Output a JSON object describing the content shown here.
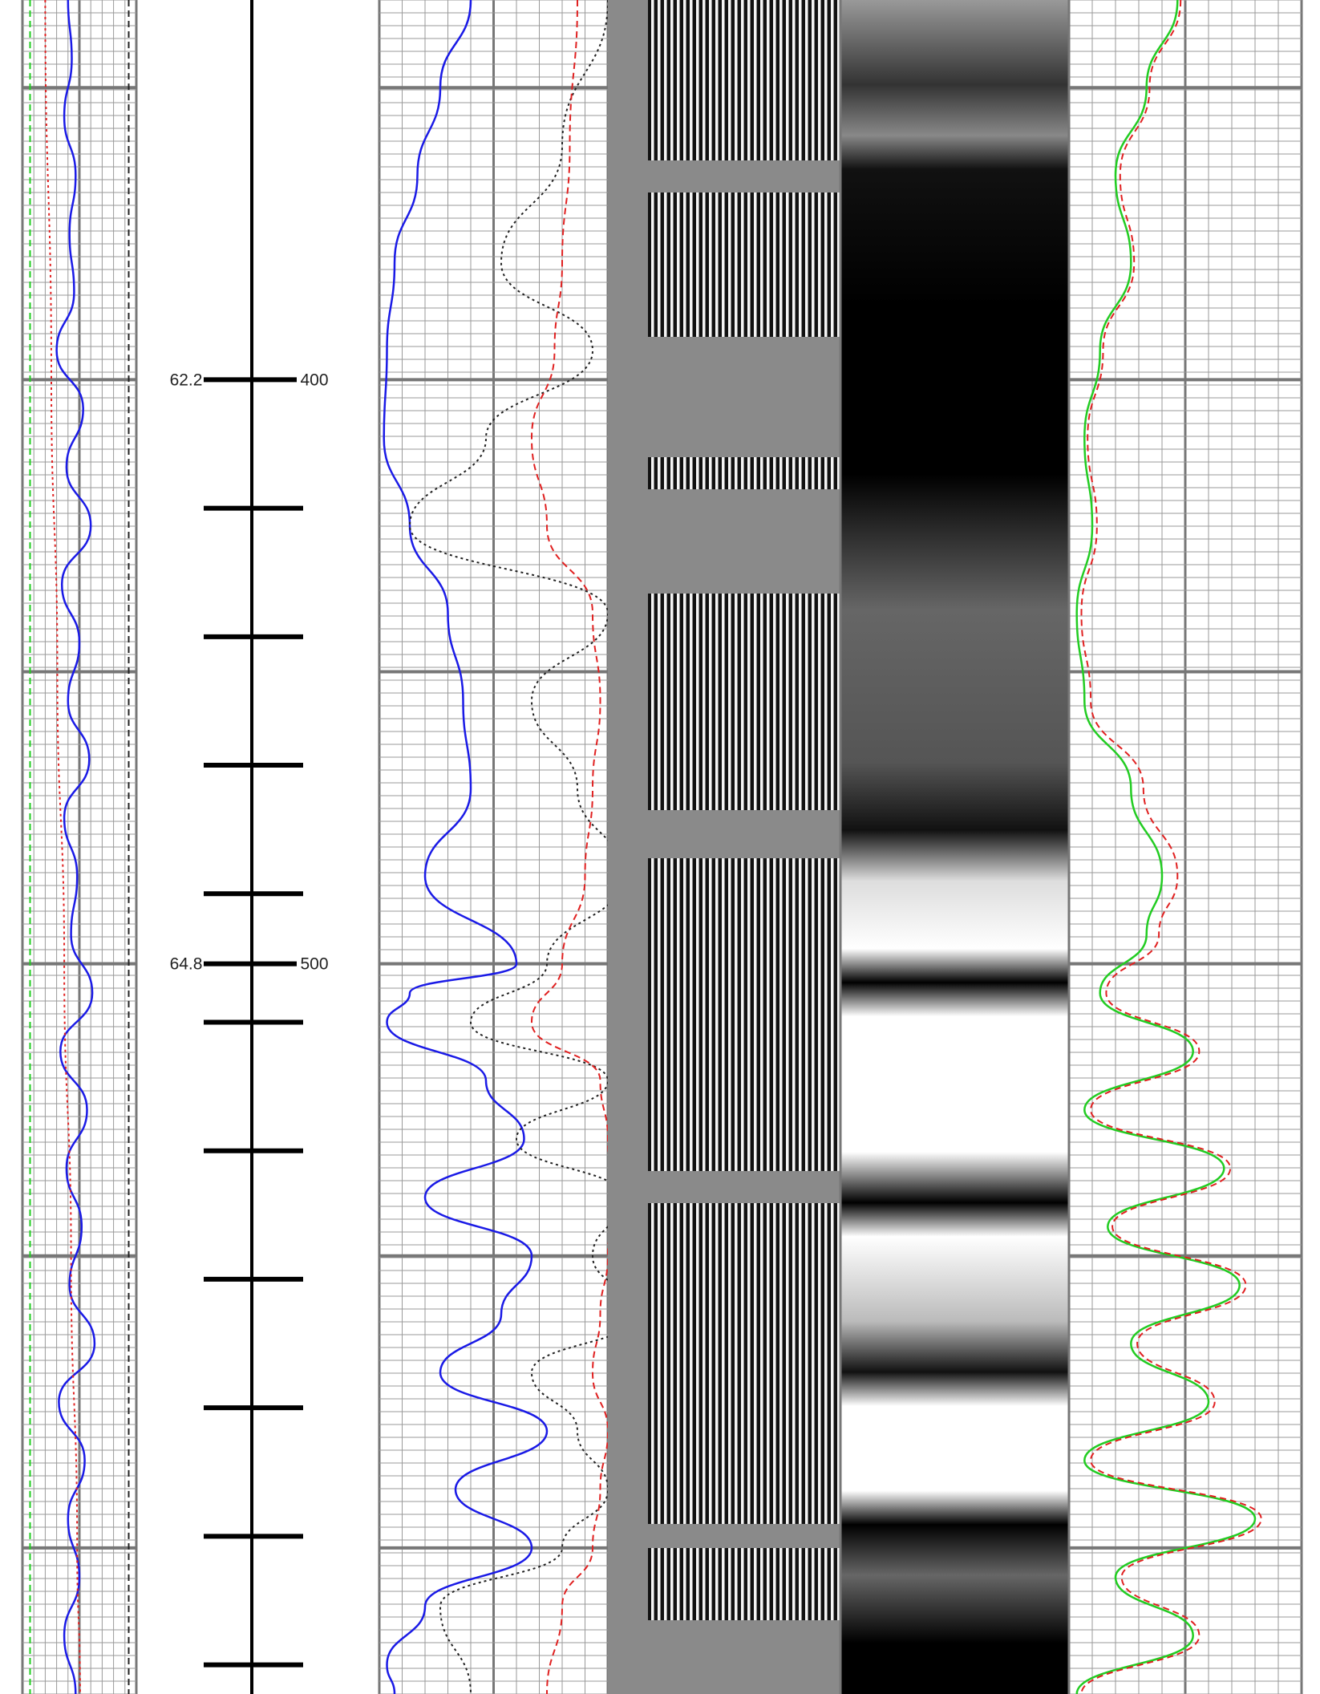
{
  "chart_data": {
    "type": "line",
    "title": "",
    "log_type": "well log",
    "grid": true,
    "depth_axis": {
      "range": [
        335,
        625
      ],
      "major_lines_every": 50,
      "tick_marks_every": 22,
      "labeled_depths": [
        {
          "depth": 400,
          "depth_label": "400",
          "value_label": "62.2"
        },
        {
          "depth": 500,
          "depth_label": "500",
          "value_label": "64.8"
        }
      ],
      "tick_depths": [
        400,
        422,
        444,
        466,
        488,
        500,
        510,
        532,
        554,
        576,
        598,
        620
      ]
    },
    "tracks": [
      {
        "id": "track-1",
        "xlim": [
          0,
          150
        ],
        "series": [
          {
            "color": "#1a1ae6",
            "style": "solid",
            "role": "log curve",
            "depths": [
              335,
              345,
              355,
              365,
              375,
              385,
              395,
              405,
              415,
              425,
              435,
              445,
              455,
              465,
              475,
              485,
              495,
              505,
              515,
              525,
              535,
              545,
              555,
              565,
              575,
              585,
              595,
              605,
              615,
              625
            ],
            "values": [
              60,
              65,
              55,
              70,
              62,
              68,
              45,
              80,
              58,
              90,
              52,
              75,
              60,
              88,
              55,
              72,
              64,
              92,
              50,
              85,
              58,
              78,
              62,
              95,
              48,
              82,
              60,
              75,
              55,
              70
            ]
          },
          {
            "color": "#222222",
            "style": "dashed",
            "role": "log curve",
            "depths": [
              335,
              625
            ],
            "values": [
              140,
              140
            ]
          },
          {
            "color": "#e02020",
            "style": "dotted",
            "role": "log curve",
            "depths": [
              335,
              400,
              450,
              500,
              550,
              600,
              625
            ],
            "values": [
              30,
              38,
              46,
              55,
              64,
              72,
              76
            ]
          },
          {
            "color": "#22cc22",
            "style": "dashed",
            "role": "log curve",
            "depths": [
              335,
              625
            ],
            "values": [
              10,
              10
            ]
          }
        ]
      },
      {
        "id": "track-2",
        "xlim": [
          0,
          150
        ],
        "series": [
          {
            "color": "#1a1ae6",
            "style": "solid",
            "role": "log curve",
            "depths": [
              335,
              350,
              365,
              380,
              395,
              410,
              425,
              440,
              455,
              470,
              485,
              500,
              505,
              510,
              520,
              530,
              540,
              550,
              560,
              570,
              580,
              590,
              600,
              610,
              620,
              625
            ],
            "values": [
              60,
              40,
              25,
              10,
              5,
              3,
              20,
              45,
              55,
              60,
              30,
              90,
              20,
              5,
              70,
              95,
              30,
              100,
              80,
              40,
              110,
              50,
              100,
              30,
              5,
              10
            ]
          },
          {
            "color": "#222222",
            "style": "dotted",
            "role": "log curve",
            "depths": [
              335,
              360,
              380,
              395,
              410,
              425,
              440,
              455,
              470,
              485,
              500,
              510,
              520,
              530,
              540,
              550,
              560,
              570,
              580,
              590,
              600,
              610,
              625
            ],
            "values": [
              150,
              120,
              80,
              140,
              70,
              20,
              150,
              100,
              130,
              160,
              110,
              60,
              150,
              90,
              160,
              140,
              170,
              100,
              130,
              150,
              120,
              40,
              60
            ]
          },
          {
            "color": "#e02020",
            "style": "dashed",
            "role": "log curve",
            "depths": [
              335,
              360,
              380,
              395,
              410,
              425,
              440,
              455,
              470,
              485,
              500,
              510,
              520,
              530,
              540,
              550,
              560,
              570,
              580,
              590,
              600,
              610,
              625
            ],
            "values": [
              130,
              125,
              120,
              115,
              100,
              110,
              140,
              145,
              140,
              135,
              120,
              100,
              145,
              150,
              155,
              150,
              145,
              140,
              150,
              145,
              140,
              120,
              110
            ]
          }
        ]
      },
      {
        "id": "track-3",
        "xlim": [
          0,
          150
        ],
        "series": [
          {
            "color": "#22cc22",
            "style": "solid",
            "role": "log curve",
            "depths": [
              335,
              350,
              365,
              380,
              395,
              410,
              425,
              440,
              455,
              470,
              485,
              495,
              505,
              515,
              525,
              535,
              545,
              555,
              565,
              575,
              585,
              595,
              605,
              615,
              625
            ],
            "values": [
              70,
              50,
              30,
              40,
              20,
              10,
              15,
              5,
              10,
              40,
              60,
              50,
              20,
              80,
              10,
              100,
              25,
              110,
              40,
              90,
              10,
              120,
              30,
              80,
              5
            ]
          },
          {
            "color": "#e02020",
            "style": "dashed",
            "role": "log curve",
            "depths": [
              335,
              350,
              365,
              380,
              395,
              410,
              425,
              440,
              455,
              470,
              485,
              495,
              505,
              515,
              525,
              535,
              545,
              555,
              565,
              575,
              585,
              595,
              605,
              615,
              625
            ],
            "values": [
              72,
              52,
              33,
              42,
              22,
              12,
              18,
              8,
              14,
              48,
              70,
              58,
              24,
              84,
              14,
              104,
              28,
              114,
              44,
              94,
              14,
              124,
              34,
              84,
              8
            ]
          }
        ]
      }
    ]
  }
}
